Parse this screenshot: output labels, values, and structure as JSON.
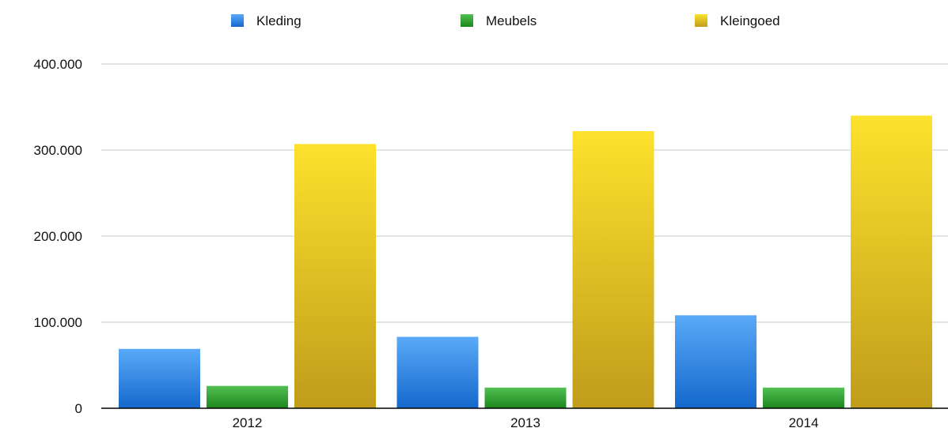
{
  "chart_data": {
    "type": "bar",
    "title": "",
    "xlabel": "",
    "ylabel": "",
    "categories": [
      "2012",
      "2013",
      "2014"
    ],
    "series": [
      {
        "name": "Kleding",
        "values": [
          69000,
          83000,
          108000
        ],
        "color": "#3a8ee6"
      },
      {
        "name": "Meubels",
        "values": [
          26000,
          24000,
          24000
        ],
        "color": "#34a534"
      },
      {
        "name": "Kleingoed",
        "values": [
          307000,
          322000,
          340000
        ],
        "color": "#e6c21e"
      }
    ],
    "ylim": [
      0,
      400000
    ],
    "yticks": [
      0,
      100000,
      200000,
      300000,
      400000
    ],
    "ytick_labels": [
      "0",
      "100.000",
      "200.000",
      "300.000",
      "400.000"
    ],
    "grid": true,
    "legend_position": "top-center"
  }
}
